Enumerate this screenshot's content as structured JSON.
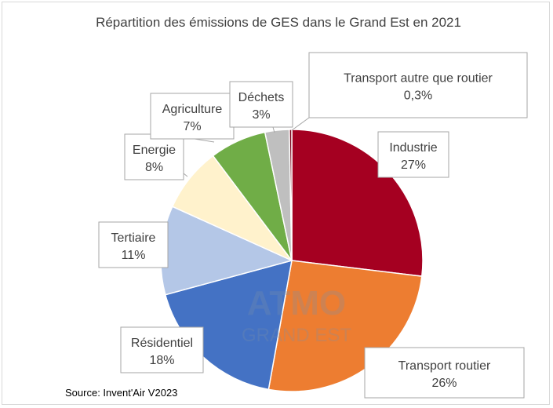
{
  "chart_data": {
    "type": "pie",
    "title": "Répartition des émissions de GES dans le Grand Est en 2021",
    "source": "Source: Invent'Air V2023",
    "watermark": {
      "line1": "ATMO",
      "line2": "GRAND EST"
    },
    "legend": "none",
    "slices": [
      {
        "name": "Industrie",
        "label": "27%",
        "value": 27,
        "color": "#a50021"
      },
      {
        "name": "Transport routier",
        "label": "26%",
        "value": 26,
        "color": "#ed7d31"
      },
      {
        "name": "Résidentiel",
        "label": "18%",
        "value": 18,
        "color": "#4472c4"
      },
      {
        "name": "Tertiaire",
        "label": "11%",
        "value": 11,
        "color": "#b4c7e7"
      },
      {
        "name": "Energie",
        "label": "8%",
        "value": 8,
        "color": "#fff2cc"
      },
      {
        "name": "Agriculture",
        "label": "7%",
        "value": 7,
        "color": "#70ad47"
      },
      {
        "name": "Déchets",
        "label": "3%",
        "value": 3,
        "color": "#bfbfbf"
      },
      {
        "name": "Transport autre que routier",
        "label": "0,3%",
        "value": 0.3,
        "color": "#7b0018"
      }
    ]
  }
}
